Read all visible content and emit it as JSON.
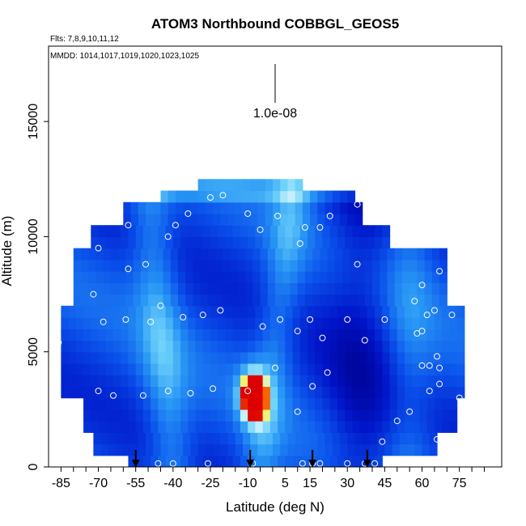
{
  "chart_data": {
    "type": "heatmap",
    "title": "ATOM3 Northbound COBBGL_GEOS5",
    "flights_label": "Flts: 7,8,9,10,11,12",
    "dates_label": "MMDD: 1014,1017,1019,1020,1023,1025",
    "xlabel": "Latitude (deg N)",
    "ylabel": "Altitude (m)",
    "xlim": [
      -85,
      85
    ],
    "ylim": [
      0,
      18000
    ],
    "x_ticks": [
      "-85",
      "-70",
      "-55",
      "-40",
      "-25",
      "-10",
      "5",
      "15",
      "30",
      "45",
      "60",
      "75"
    ],
    "y_ticks": [
      "0",
      "5000",
      "10000",
      "15000"
    ],
    "scale_label": "1.0e-08",
    "arrows_lat": [
      -55,
      -9,
      16,
      38
    ],
    "sample_points": [
      {
        "lat": -70,
        "alt": 3300
      },
      {
        "lat": -64,
        "alt": 3100
      },
      {
        "lat": -52,
        "alt": 3100
      },
      {
        "lat": -42,
        "alt": 3300
      },
      {
        "lat": -33,
        "alt": 3200
      },
      {
        "lat": -24,
        "alt": 3400
      },
      {
        "lat": -10,
        "alt": 3300
      },
      {
        "lat": 1,
        "alt": 4300
      },
      {
        "lat": 10,
        "alt": 2400
      },
      {
        "lat": 16,
        "alt": 3500
      },
      {
        "lat": 22,
        "alt": 4100
      },
      {
        "lat": -72,
        "alt": 7500
      },
      {
        "lat": -68,
        "alt": 6300
      },
      {
        "lat": -59,
        "alt": 6400
      },
      {
        "lat": -49,
        "alt": 6300
      },
      {
        "lat": -45,
        "alt": 7000
      },
      {
        "lat": -36,
        "alt": 6500
      },
      {
        "lat": -28,
        "alt": 6600
      },
      {
        "lat": -21,
        "alt": 6800
      },
      {
        "lat": -4,
        "alt": 6100
      },
      {
        "lat": 3,
        "alt": 6400
      },
      {
        "lat": 10,
        "alt": 5900
      },
      {
        "lat": 15,
        "alt": 6400
      },
      {
        "lat": 20,
        "alt": 5600
      },
      {
        "lat": 30,
        "alt": 6400
      },
      {
        "lat": 37,
        "alt": 5500
      },
      {
        "lat": 45,
        "alt": 6400
      },
      {
        "lat": -70,
        "alt": 9500
      },
      {
        "lat": -58,
        "alt": 8600
      },
      {
        "lat": -51,
        "alt": 8800
      },
      {
        "lat": -42,
        "alt": 10000
      },
      {
        "lat": -39,
        "alt": 10500
      },
      {
        "lat": -5,
        "alt": 10300
      },
      {
        "lat": 11,
        "alt": 9700
      },
      {
        "lat": 13,
        "alt": 10400
      },
      {
        "lat": 19,
        "alt": 10400
      },
      {
        "lat": 34,
        "alt": 8800
      },
      {
        "lat": -58,
        "alt": 10500
      },
      {
        "lat": -34,
        "alt": 11000
      },
      {
        "lat": -25,
        "alt": 11700
      },
      {
        "lat": -20,
        "alt": 11800
      },
      {
        "lat": -10,
        "alt": 11000
      },
      {
        "lat": 2,
        "alt": 10900
      },
      {
        "lat": 23,
        "alt": 10900
      },
      {
        "lat": 34,
        "alt": 11400
      },
      {
        "lat": 60,
        "alt": 7900
      },
      {
        "lat": 57,
        "alt": 7200
      },
      {
        "lat": 62,
        "alt": 6600
      },
      {
        "lat": 58,
        "alt": 5800
      },
      {
        "lat": 60,
        "alt": 5900
      },
      {
        "lat": 65,
        "alt": 6800
      },
      {
        "lat": 66,
        "alt": 4800
      },
      {
        "lat": 63,
        "alt": 4400
      },
      {
        "lat": 67,
        "alt": 4300
      },
      {
        "lat": 60,
        "alt": 4400
      },
      {
        "lat": 67,
        "alt": 3600
      },
      {
        "lat": 63,
        "alt": 3300
      },
      {
        "lat": 72,
        "alt": 6600
      },
      {
        "lat": 67,
        "alt": 8500
      },
      {
        "lat": 75,
        "alt": 3000
      },
      {
        "lat": 55,
        "alt": 2400
      },
      {
        "lat": 50,
        "alt": 2000
      },
      {
        "lat": 66,
        "alt": 1200
      },
      {
        "lat": 44,
        "alt": 1100
      },
      {
        "lat": -46,
        "alt": 150
      },
      {
        "lat": -40,
        "alt": 150
      },
      {
        "lat": -26,
        "alt": 150
      },
      {
        "lat": -8,
        "alt": 150
      },
      {
        "lat": 12,
        "alt": 150
      },
      {
        "lat": 16,
        "alt": 150
      },
      {
        "lat": 19,
        "alt": 150
      },
      {
        "lat": 30,
        "alt": 150
      },
      {
        "lat": 37,
        "alt": 150
      },
      {
        "lat": 41,
        "alt": 150
      },
      {
        "lat": -86,
        "alt": 5400
      }
    ]
  }
}
